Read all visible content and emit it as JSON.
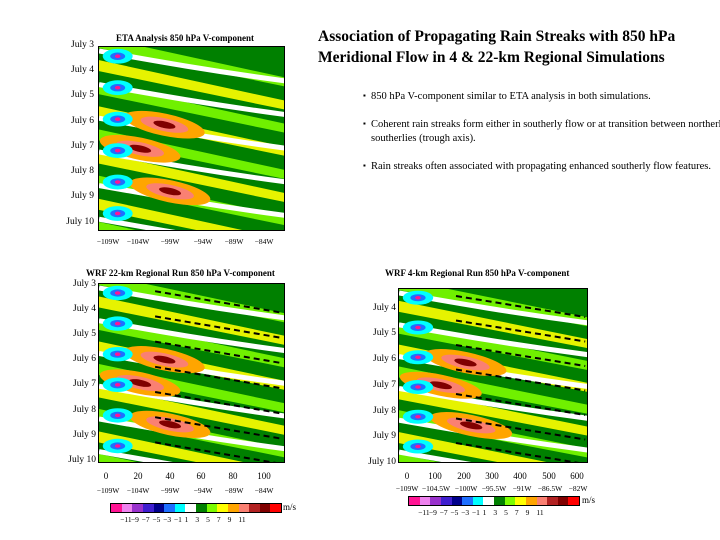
{
  "slide": {
    "title_line1": "Association of Propagating Rain Streaks with 850 hPa",
    "title_line2": "Meridional Flow in 4 & 22-km Regional Simulations",
    "bullets": [
      "850 hPa V-component similar to ETA analysis in both simulations.",
      "Coherent rain streaks form either in southerly flow or at transition between northerlies and southerlies (trough axis).",
      "Rain streaks often associated with propagating enhanced southerly flow features."
    ]
  },
  "panels": {
    "eta": {
      "title": "ETA Analysis 850 hPa V-component",
      "y_ticks": [
        "July 3",
        "July 4",
        "July 5",
        "July 6",
        "July 7",
        "July 8",
        "July 9",
        "July 10"
      ],
      "x_ticks": [
        "−109W",
        "−104W",
        "−99W",
        "−94W",
        "−89W",
        "−84W"
      ]
    },
    "wrf22": {
      "title": "WRF 22-km Regional Run 850 hPa V-component",
      "y_ticks": [
        "July 3",
        "July 4",
        "July 5",
        "July 6",
        "July 7",
        "July 8",
        "July 9",
        "July 10"
      ],
      "x_ticks_km": [
        "0",
        "20",
        "40",
        "60",
        "80",
        "100"
      ],
      "x_ticks": [
        "−109W",
        "−104W",
        "−99W",
        "−94W",
        "−89W",
        "−84W"
      ]
    },
    "wrf4": {
      "title": "WRF 4-km Regional Run 850 hPa V-component",
      "y_ticks": [
        "July 4",
        "July 5",
        "July 6",
        "July 7",
        "July 8",
        "July 9",
        "July 10"
      ],
      "x_ticks_km": [
        "0",
        "100",
        "200",
        "300",
        "400",
        "500",
        "600"
      ],
      "x_ticks": [
        "−109W",
        "−104.5W",
        "−100W",
        "−95.5W",
        "−91W",
        "−86.5W",
        "−82W"
      ]
    }
  },
  "colorbar": {
    "labels": [
      "−11",
      "−9",
      "−7",
      "−5",
      "−3",
      "−1",
      "1",
      "3",
      "5",
      "7",
      "9",
      "11"
    ],
    "colors": [
      "#ff1493",
      "#ee82ee",
      "#9932cc",
      "#3f1fcf",
      "#00008b",
      "#1e6fff",
      "#00ffff",
      "#ffffff",
      "#008000",
      "#7cfc00",
      "#ffff00",
      "#ffa500",
      "#fa8072",
      "#b22222",
      "#800000",
      "#ff0000"
    ],
    "unit": "m/s"
  }
}
